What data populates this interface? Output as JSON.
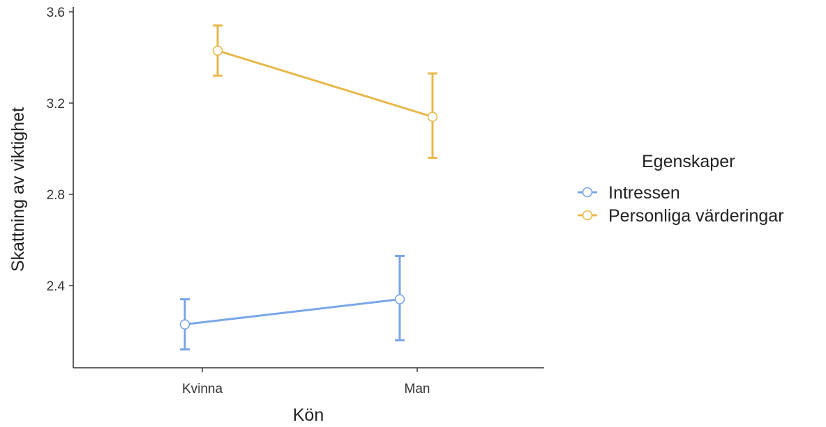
{
  "chart_data": {
    "type": "line",
    "title": "",
    "xlabel": "Kön",
    "ylabel": "Skattning av viktighet",
    "categories": [
      "Kvinna",
      "Man"
    ],
    "ylim": [
      2.05,
      3.6
    ],
    "yticks": [
      2.4,
      2.8,
      3.2,
      3.6
    ],
    "ytick_labels": [
      "2.4",
      "2.8",
      "3.2",
      "3.6"
    ],
    "grid": false,
    "legend": {
      "title": "Egenskaper",
      "placement": "right"
    },
    "series": [
      {
        "name": "Intressen",
        "color": "#7AA6E8",
        "values": [
          2.23,
          2.34
        ],
        "error_low": [
          2.12,
          2.16
        ],
        "error_high": [
          2.34,
          2.53
        ]
      },
      {
        "name": "Personliga värderingar",
        "color": "#E8B84B",
        "values": [
          3.43,
          3.14
        ],
        "error_low": [
          3.32,
          2.96
        ],
        "error_high": [
          3.54,
          3.33
        ]
      }
    ]
  }
}
